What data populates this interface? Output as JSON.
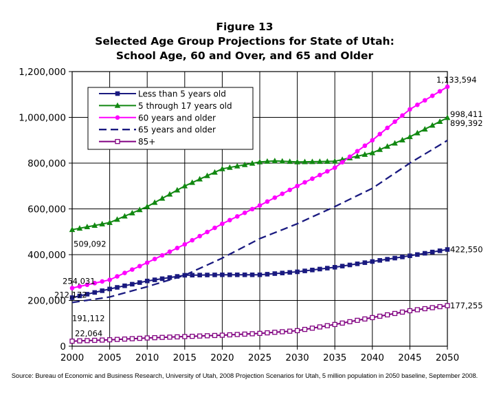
{
  "title_lines": [
    "Figure 13",
    "Selected Age Group Projections for State of Utah:",
    "School Age, 60 and Over, and 65 and Older"
  ],
  "source": "Source: Bureau of Economic and Business Research, University of Utah, 2008 Projection Scenarios for Utah, 5 million population in 2050 baseline, September 2008.",
  "chart_data": {
    "type": "line",
    "title": "Selected Age Group Projections for State of Utah: School Age, 60 and Over, and 65 and Older",
    "xlabel": "",
    "ylabel": "",
    "xlim": [
      2000,
      2050
    ],
    "ylim": [
      0,
      1200000
    ],
    "grid": true,
    "legend_position": "top-left",
    "x_ticks": [
      "2000",
      "2005",
      "2010",
      "2015",
      "2020",
      "2025",
      "2030",
      "2035",
      "2040",
      "2045",
      "2050"
    ],
    "y_ticks": [
      {
        "value": 0,
        "label": "0"
      },
      {
        "value": 200000,
        "label": "200,000"
      },
      {
        "value": 400000,
        "label": "400,000"
      },
      {
        "value": 600000,
        "label": "600,000"
      },
      {
        "value": 800000,
        "label": "800,000"
      },
      {
        "value": 1000000,
        "label": "1,000,000"
      },
      {
        "value": 1200000,
        "label": "1,200,000"
      }
    ],
    "series": [
      {
        "name": "Less than 5 years old",
        "color": "#1a1a80",
        "style": "solid",
        "marker": "square",
        "points": [
          [
            2000,
            212172
          ],
          [
            2005,
            250000
          ],
          [
            2010,
            285000
          ],
          [
            2015,
            310000
          ],
          [
            2020,
            312000
          ],
          [
            2025,
            312000
          ],
          [
            2030,
            325000
          ],
          [
            2035,
            345000
          ],
          [
            2040,
            370000
          ],
          [
            2045,
            395000
          ],
          [
            2050,
            422550
          ]
        ]
      },
      {
        "name": "5 through 17 years old",
        "color": "#118811",
        "style": "solid",
        "marker": "triangle",
        "points": [
          [
            2000,
            509092
          ],
          [
            2005,
            540000
          ],
          [
            2010,
            610000
          ],
          [
            2015,
            700000
          ],
          [
            2020,
            775000
          ],
          [
            2025,
            805000
          ],
          [
            2027,
            810000
          ],
          [
            2030,
            805000
          ],
          [
            2035,
            808000
          ],
          [
            2040,
            845000
          ],
          [
            2045,
            915000
          ],
          [
            2050,
            998411
          ]
        ]
      },
      {
        "name": "60 years and older",
        "color": "#ff00ff",
        "style": "solid",
        "marker": "circle",
        "points": [
          [
            2000,
            254031
          ],
          [
            2005,
            290000
          ],
          [
            2010,
            365000
          ],
          [
            2015,
            445000
          ],
          [
            2020,
            535000
          ],
          [
            2025,
            615000
          ],
          [
            2030,
            700000
          ],
          [
            2035,
            780000
          ],
          [
            2040,
            900000
          ],
          [
            2045,
            1035000
          ],
          [
            2050,
            1133594
          ]
        ]
      },
      {
        "name": "65 years and older",
        "color": "#1a1a80",
        "style": "dashed",
        "marker": "none",
        "points": [
          [
            2000,
            191112
          ],
          [
            2005,
            215000
          ],
          [
            2010,
            260000
          ],
          [
            2015,
            310000
          ],
          [
            2020,
            385000
          ],
          [
            2025,
            470000
          ],
          [
            2030,
            535000
          ],
          [
            2035,
            610000
          ],
          [
            2040,
            690000
          ],
          [
            2045,
            800000
          ],
          [
            2050,
            899392
          ]
        ]
      },
      {
        "name": "85+",
        "color": "#800080",
        "style": "solid",
        "marker": "open-square",
        "points": [
          [
            2000,
            22064
          ],
          [
            2005,
            28000
          ],
          [
            2010,
            36000
          ],
          [
            2015,
            42000
          ],
          [
            2020,
            48000
          ],
          [
            2025,
            56000
          ],
          [
            2030,
            68000
          ],
          [
            2035,
            95000
          ],
          [
            2040,
            125000
          ],
          [
            2045,
            155000
          ],
          [
            2050,
            177255
          ]
        ]
      }
    ],
    "annotations": [
      {
        "series": "60 years and older",
        "x": 2050,
        "label": "1,133,594"
      },
      {
        "series": "5 through 17 years old",
        "x": 2050,
        "label": "998,411"
      },
      {
        "series": "65 years and older",
        "x": 2050,
        "label": "899,392"
      },
      {
        "series": "Less than 5 years old",
        "x": 2050,
        "label": "422,550"
      },
      {
        "series": "85+",
        "x": 2050,
        "label": "177,255"
      },
      {
        "series": "5 through 17 years old",
        "x": 2000,
        "label": "509,092"
      },
      {
        "series": "60 years and older",
        "x": 2000,
        "label": "254,031"
      },
      {
        "series": "Less than 5 years old",
        "x": 2000,
        "label": "212,172"
      },
      {
        "series": "65 years and older",
        "x": 2000,
        "label": "191,112"
      },
      {
        "series": "85+",
        "x": 2000,
        "label": "22,064"
      }
    ]
  }
}
